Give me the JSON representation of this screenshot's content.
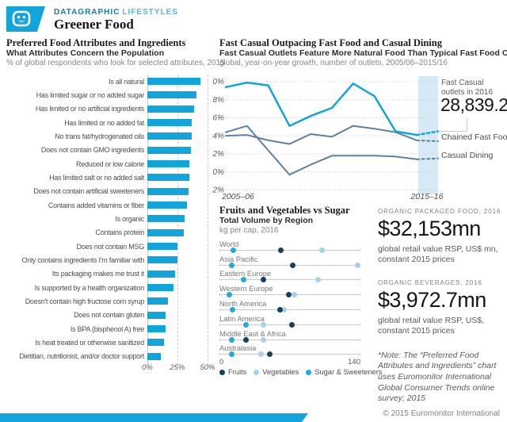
{
  "header": {
    "kicker_primary": "DATAGRAPHIC",
    "kicker_secondary": "LIFESTYLES",
    "title": "Greener Food"
  },
  "colors": {
    "accent": "#12a5db",
    "steel": "#5e81a0",
    "band": "#d6e9f5",
    "fruits": "#16405c",
    "vegetables": "#a6d1e8",
    "sugar": "#25a8dc"
  },
  "chart_data": [
    {
      "id": "attributes-bar",
      "type": "bar",
      "title": "Preferred Food Attributes and Ingredients",
      "subtitle": "What Attributes Concern the Population",
      "unit_note": "% of global respondents who look for selected attributes, 2015",
      "categories": [
        "Is all natural",
        "Has limited sugar or no added sugar",
        "Has limited or no artificial ingredients",
        "Has limited or no added fat",
        "No trans fat/hydrogenated oils",
        "Does not contain GMO ingredients",
        "Reduced or low calorie",
        "Has limited salt or no added salt",
        "Does not contain artificial sweeteners",
        "Contains added vitamins or fiber",
        "Is organic",
        "Contains protein",
        "Does not contain MSG",
        "Only contains ingredients I'm familiar with",
        "Its packaging makes me trust it",
        "Is supported by a health organization",
        "Doesn't contain high fructose corn syrup",
        "Does not contain gluten",
        "Is BPA (bisphenol A) free",
        "Is heat treated or otherwise sanitized",
        "Dietitian, nutritionist, and/or doctor support"
      ],
      "values": [
        44,
        41,
        39,
        37,
        37,
        36,
        35,
        35,
        34,
        33,
        31,
        30,
        25,
        25,
        23,
        22,
        17,
        15,
        15,
        14,
        11
      ],
      "xlim": [
        0,
        50
      ],
      "xticks": [
        "0%",
        "25%",
        "50%"
      ],
      "xtick_values": [
        0,
        25,
        50
      ],
      "bar_color": "#12a5db"
    },
    {
      "id": "outlets-line",
      "type": "line",
      "title": "Fast Casual Outpacing Fast Food and Casual Dining",
      "subtitle": "Fast Casual Outlets Feature More Natural Food Than Typical Fast Food Ones",
      "unit_note": "global, year-on-year growth, number of outlets, 2005/06–2015/16",
      "x_labels": [
        "2005–06",
        "2015–16"
      ],
      "ylim": [
        -2,
        10
      ],
      "ytick_values": [
        10,
        8,
        6,
        4,
        2,
        0,
        -2
      ],
      "yticks": [
        "10%",
        "8%",
        "6%",
        "4%",
        "2%",
        "0%",
        "−2%"
      ],
      "forecast_band": "2015–16",
      "series": [
        {
          "name": "Fast Casual",
          "color": "#12a5db",
          "width": 2.5,
          "values": [
            9.4,
            9.9,
            9.6,
            5.1,
            6.2,
            7.1,
            9.8,
            8.4,
            4.5,
            4.1
          ],
          "forecast": 4.5
        },
        {
          "name": "Chained Fast Food",
          "color": "#5e81a0",
          "width": 2,
          "values": [
            4.0,
            4.1,
            3.5,
            3.1,
            4.2,
            3.9,
            5.1,
            4.8,
            4.4,
            3.5
          ],
          "forecast": 3.4
        },
        {
          "name": "Casual Dining",
          "color": "#5e81a0",
          "width": 2,
          "values": [
            4.4,
            5.1,
            2.4,
            -0.3,
            0.8,
            1.8,
            1.8,
            1.8,
            1.7,
            1.4
          ],
          "forecast": 1.5
        }
      ],
      "annotation": {
        "label_line1": "Fast Casual",
        "label_line2": "outlets in 2016",
        "value": "28,839.2"
      }
    },
    {
      "id": "fruit-veg-sugar-dots",
      "type": "scatter",
      "title": "Fruits and Vegetables vs Sugar",
      "subtitle": "Total Volume by Region",
      "unit_note": "kg per cap, 2016",
      "xlim": [
        0,
        140
      ],
      "xticks": [
        "0",
        "140"
      ],
      "legend": [
        {
          "label": "Fruits",
          "color": "#16405c"
        },
        {
          "label": "Vegetables",
          "color": "#a6d1e8"
        },
        {
          "label": "Sugar & Sweeteners",
          "color": "#25a8dc"
        }
      ],
      "rows": [
        {
          "region": "World",
          "fruits": 61,
          "vegetables": 102,
          "sugar": 14
        },
        {
          "region": "Asia Pacific",
          "fruits": 73,
          "vegetables": 137,
          "sugar": 12
        },
        {
          "region": "Eastern Europe",
          "fruits": 44,
          "vegetables": 98,
          "sugar": 24
        },
        {
          "region": "Western Europe",
          "fruits": 69,
          "vegetables": 74,
          "sugar": 10
        },
        {
          "region": "North America",
          "fruits": 60,
          "vegetables": 64,
          "sugar": 13
        },
        {
          "region": "Latin America",
          "fruits": 72,
          "vegetables": 44,
          "sugar": 26
        },
        {
          "region": "Middle East & Africa",
          "fruits": 26,
          "vegetables": 44,
          "sugar": 12
        },
        {
          "region": "Australasia",
          "fruits": 50,
          "vegetables": 41,
          "sugar": 12
        }
      ]
    }
  ],
  "stats": [
    {
      "label": "ORGANIC PACKAGED FOOD, 2016",
      "value": "$32,153mn",
      "desc": "global retail value RSP, US$ mn, constant 2015 prices"
    },
    {
      "label": "ORGANIC BEVERAGES, 2016",
      "value": "$3,972.7mn",
      "desc": "global retail value RSP, US$, constant 2015 prices"
    }
  ],
  "note": "*Note: The “Preferred Food Attributes and Ingredients” chart uses Euromonitor International Global Consumer Trends online survey; 2015",
  "footer": {
    "copyright": "© 2015 Euromonitor International"
  }
}
